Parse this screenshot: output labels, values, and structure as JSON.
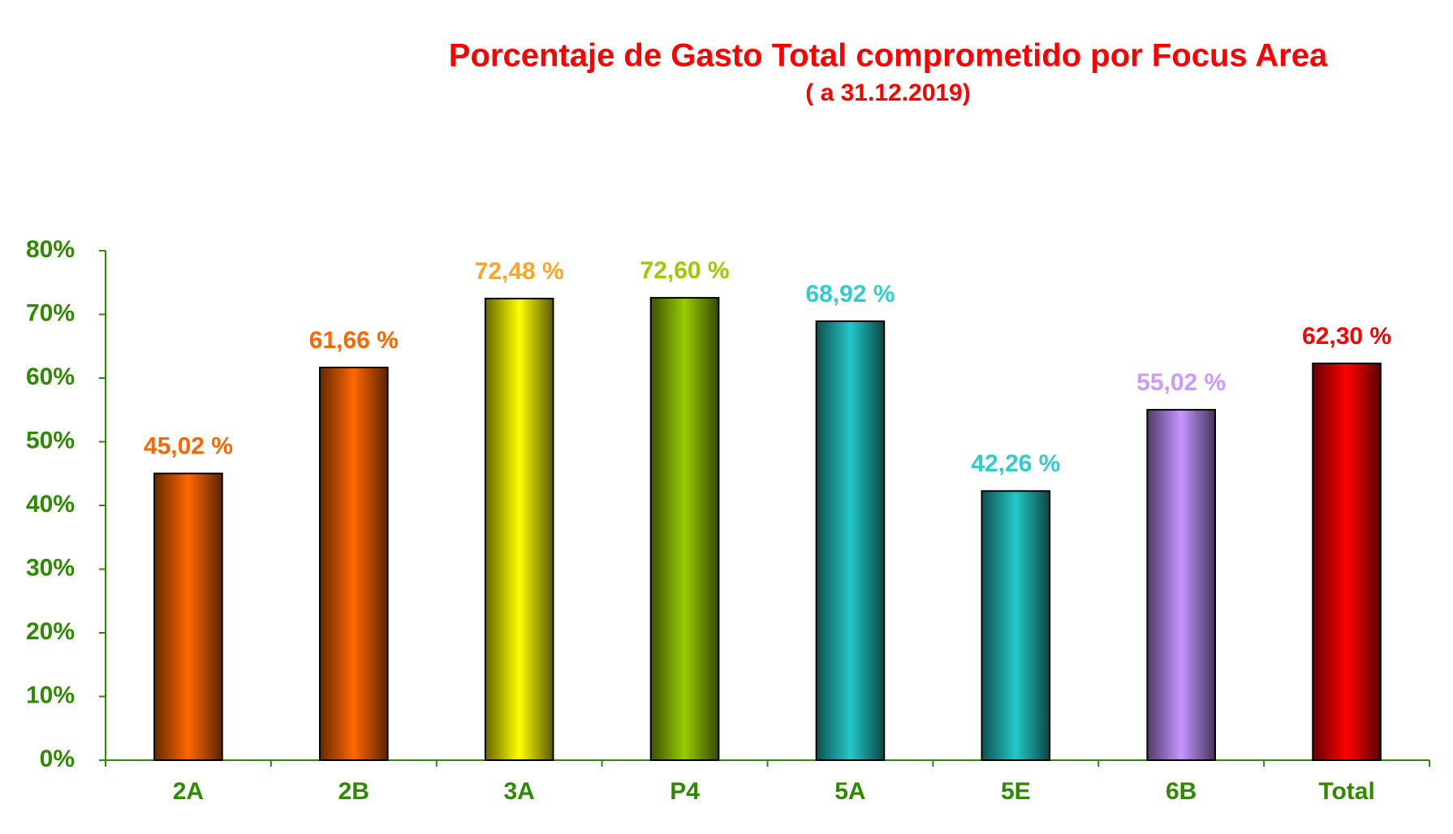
{
  "chart_data": {
    "type": "bar",
    "title": "Porcentaje de Gasto Total comprometido por Focus Area",
    "subtitle": "( a 31.12.2019)",
    "categories": [
      "2A",
      "2B",
      "3A",
      "P4",
      "5A",
      "5E",
      "6B",
      "Total"
    ],
    "values": [
      45.02,
      61.66,
      72.48,
      72.6,
      68.92,
      42.26,
      55.02,
      62.3
    ],
    "value_labels": [
      "45,02 %",
      "61,66 %",
      "72,48 %",
      "72,60 %",
      "68,92 %",
      "42,26 %",
      "55,02 %",
      "62,30 %"
    ],
    "colors": [
      "#ff6600",
      "#ff6600",
      "#ffff00",
      "#99cc00",
      "#22c8c8",
      "#22c8c8",
      "#c496ff",
      "#ff0000"
    ],
    "label_colors": [
      "#ff6600",
      "#ff6600",
      "#ffa524",
      "#99cc00",
      "#33cccc",
      "#33cccc",
      "#cc99ff",
      "#ff0000"
    ],
    "axis_color": "#2e8b00",
    "title_color": "#ff0000",
    "ylim": [
      0,
      80
    ],
    "yticks": [
      {
        "value": 0,
        "label": "0%"
      },
      {
        "value": 10,
        "label": "10%"
      },
      {
        "value": 20,
        "label": "20%"
      },
      {
        "value": 30,
        "label": "30%"
      },
      {
        "value": 40,
        "label": "40%"
      },
      {
        "value": 50,
        "label": "50%"
      },
      {
        "value": 60,
        "label": "60%"
      },
      {
        "value": 70,
        "label": "70%"
      },
      {
        "value": 80,
        "label": "80%"
      }
    ],
    "grid": false
  }
}
